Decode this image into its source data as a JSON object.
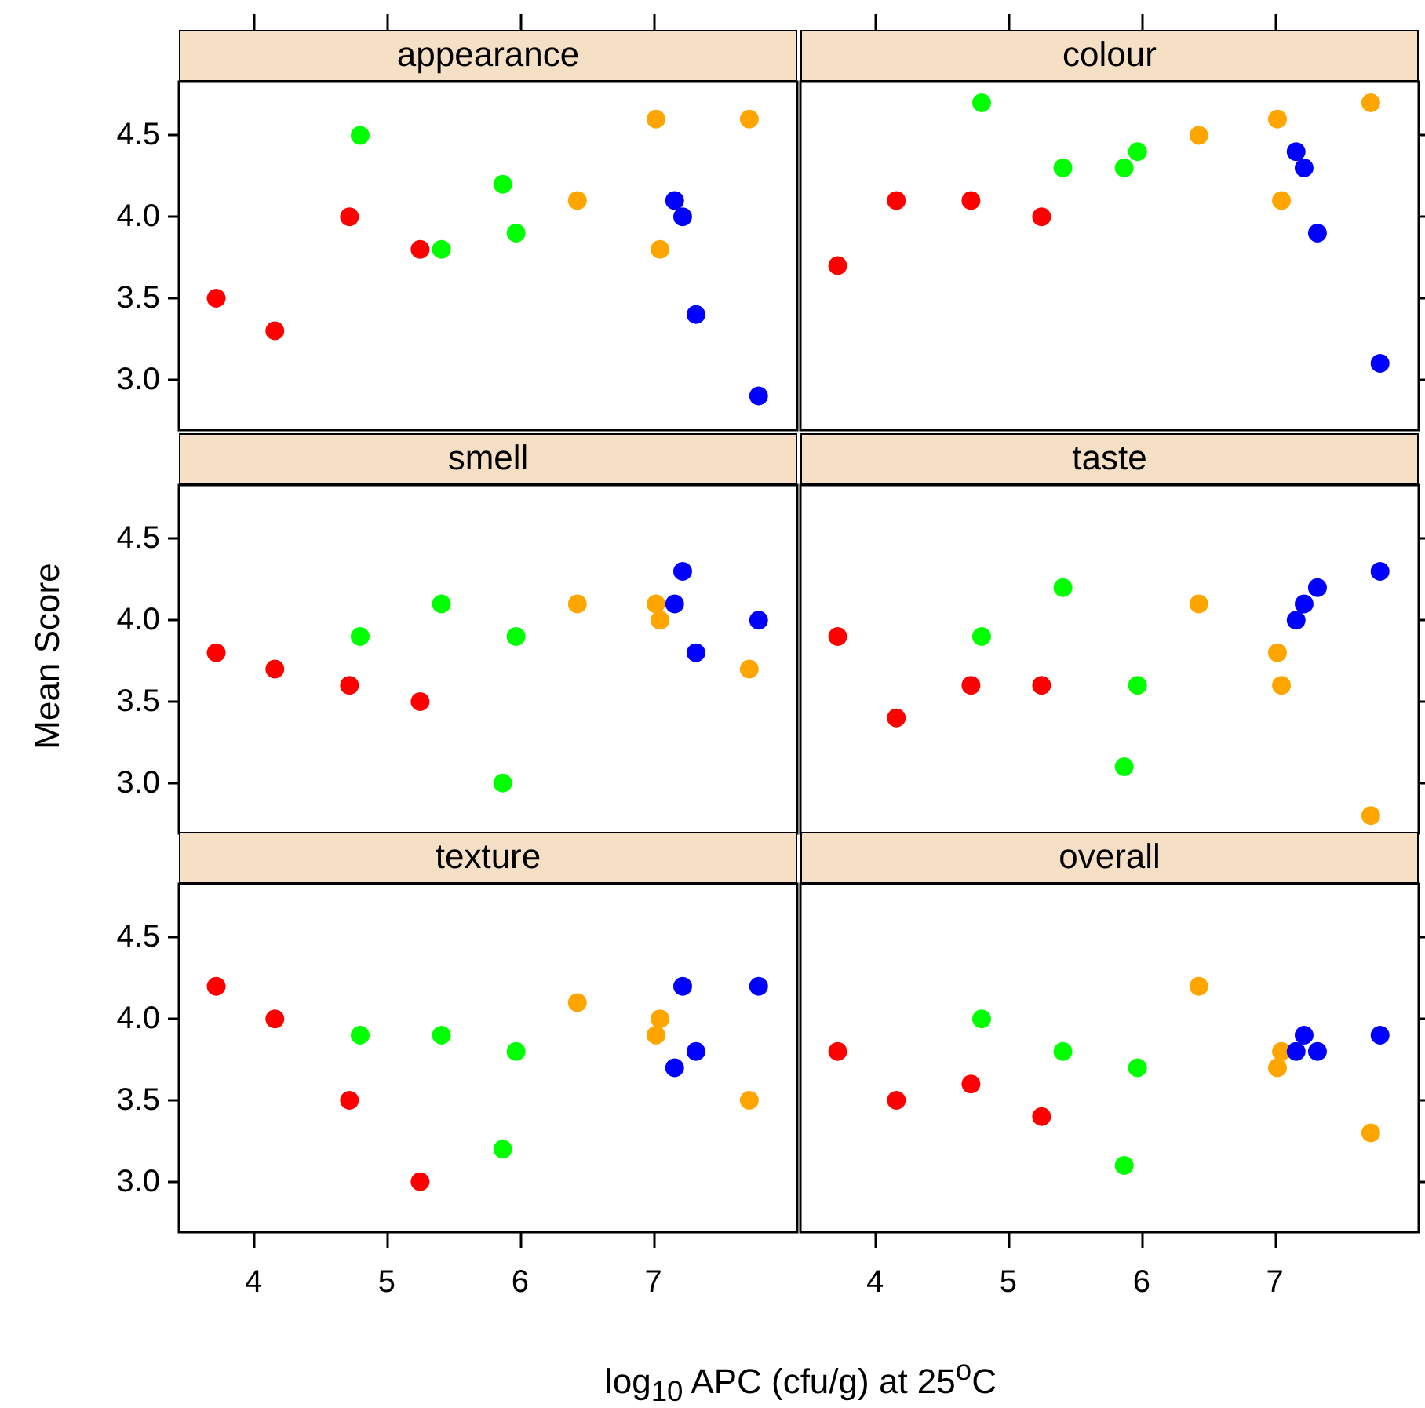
{
  "chart_data": [
    {
      "type": "scatter",
      "title": "appearance",
      "xlim": [
        3.44,
        8.08
      ],
      "ylim": [
        2.69,
        4.83
      ],
      "xticks": [
        4,
        5,
        6,
        7
      ],
      "yticks": [
        {
          "value": 3,
          "label": "3.0"
        },
        {
          "value": 3.5,
          "label": "3.5"
        },
        {
          "value": 4,
          "label": "4.0"
        },
        {
          "value": 4.5,
          "label": "4.5"
        }
      ],
      "tick_labels": "y",
      "marker": "circle",
      "series": [
        {
          "color": "#ff0000",
          "x": [
            3.72,
            4.16,
            4.72,
            5.25
          ],
          "values": [
            3.5,
            3.3,
            4.0,
            3.8
          ]
        },
        {
          "color": "#00ff00",
          "x": [
            4.8,
            5.41,
            5.87,
            5.97
          ],
          "values": [
            4.5,
            3.8,
            4.2,
            3.9
          ]
        },
        {
          "color": "#ffa500",
          "x": [
            6.43,
            7.02,
            7.05,
            7.72
          ],
          "values": [
            4.1,
            4.6,
            3.8,
            4.6
          ]
        },
        {
          "color": "#0000ff",
          "x": [
            7.16,
            7.22,
            7.32,
            7.79
          ],
          "values": [
            4.1,
            4.0,
            3.4,
            2.9
          ]
        }
      ]
    },
    {
      "type": "scatter",
      "title": "colour",
      "xlim": [
        3.44,
        8.08
      ],
      "ylim": [
        2.69,
        4.83
      ],
      "xticks": [
        4,
        5,
        6,
        7
      ],
      "yticks": [
        3,
        3.5,
        4,
        4.5
      ],
      "tick_labels": false,
      "marker": "circle",
      "series": [
        {
          "color": "#ff0000",
          "x": [
            3.72,
            4.16,
            4.72,
            5.25
          ],
          "values": [
            3.7,
            4.1,
            4.1,
            4.0
          ]
        },
        {
          "color": "#00ff00",
          "x": [
            4.8,
            5.41,
            5.87,
            5.97
          ],
          "values": [
            4.7,
            4.3,
            4.3,
            4.4
          ]
        },
        {
          "color": "#ffa500",
          "x": [
            6.43,
            7.02,
            7.05,
            7.72
          ],
          "values": [
            4.5,
            4.6,
            4.1,
            4.7
          ]
        },
        {
          "color": "#0000ff",
          "x": [
            7.16,
            7.22,
            7.32,
            7.79
          ],
          "values": [
            4.4,
            4.3,
            3.9,
            3.1
          ]
        }
      ]
    },
    {
      "type": "scatter",
      "title": "smell",
      "ylabel": "Mean Score",
      "xlim": [
        3.44,
        8.08
      ],
      "ylim": [
        2.69,
        4.83
      ],
      "xticks": [
        4,
        5,
        6,
        7
      ],
      "yticks": [
        {
          "value": 3,
          "label": "3.0"
        },
        {
          "value": 3.5,
          "label": "3.5"
        },
        {
          "value": 4,
          "label": "4.0"
        },
        {
          "value": 4.5,
          "label": "4.5"
        }
      ],
      "tick_labels": "y",
      "marker": "circle",
      "series": [
        {
          "color": "#ff0000",
          "x": [
            3.72,
            4.16,
            4.72,
            5.25
          ],
          "values": [
            3.8,
            3.7,
            3.6,
            3.5
          ]
        },
        {
          "color": "#00ff00",
          "x": [
            4.8,
            5.41,
            5.87,
            5.97
          ],
          "values": [
            3.9,
            4.1,
            3.0,
            3.9
          ]
        },
        {
          "color": "#ffa500",
          "x": [
            6.43,
            7.02,
            7.05,
            7.72
          ],
          "values": [
            4.1,
            4.1,
            4.0,
            3.7
          ]
        },
        {
          "color": "#0000ff",
          "x": [
            7.16,
            7.22,
            7.32,
            7.79
          ],
          "values": [
            4.1,
            4.3,
            3.8,
            4.0
          ]
        }
      ]
    },
    {
      "type": "scatter",
      "title": "taste",
      "xlim": [
        3.44,
        8.08
      ],
      "ylim": [
        2.69,
        4.83
      ],
      "xticks": [
        4,
        5,
        6,
        7
      ],
      "yticks": [
        3,
        3.5,
        4,
        4.5
      ],
      "tick_labels": false,
      "marker": "circle",
      "series": [
        {
          "color": "#ff0000",
          "x": [
            3.72,
            4.16,
            4.72,
            5.25
          ],
          "values": [
            3.9,
            3.4,
            3.6,
            3.6
          ]
        },
        {
          "color": "#00ff00",
          "x": [
            4.8,
            5.41,
            5.87,
            5.97
          ],
          "values": [
            3.9,
            4.2,
            3.1,
            3.6
          ]
        },
        {
          "color": "#ffa500",
          "x": [
            6.43,
            7.02,
            7.05,
            7.72
          ],
          "values": [
            4.1,
            3.8,
            3.6,
            2.8
          ]
        },
        {
          "color": "#0000ff",
          "x": [
            7.16,
            7.22,
            7.32,
            7.79
          ],
          "values": [
            4.0,
            4.1,
            4.2,
            4.3
          ]
        }
      ]
    },
    {
      "type": "scatter",
      "title": "texture",
      "xlabel": "log$_{10}$ APC (cfu/g) at 25$^{o}$C",
      "xlim": [
        3.44,
        8.08
      ],
      "ylim": [
        2.69,
        4.83
      ],
      "xticks": [
        4,
        5,
        6,
        7
      ],
      "yticks": [
        {
          "value": 3,
          "label": "3.0"
        },
        {
          "value": 3.5,
          "label": "3.5"
        },
        {
          "value": 4,
          "label": "4.0"
        },
        {
          "value": 4.5,
          "label": "4.5"
        }
      ],
      "marker": "circle",
      "series": [
        {
          "color": "#ff0000",
          "x": [
            3.72,
            4.16,
            4.72,
            5.25
          ],
          "values": [
            4.2,
            4.0,
            3.5,
            3.0
          ]
        },
        {
          "color": "#00ff00",
          "x": [
            4.8,
            5.41,
            5.87,
            5.97
          ],
          "values": [
            3.9,
            3.9,
            3.2,
            3.8
          ]
        },
        {
          "color": "#ffa500",
          "x": [
            6.43,
            7.02,
            7.05,
            7.72
          ],
          "values": [
            4.1,
            3.9,
            4.0,
            3.5
          ]
        },
        {
          "color": "#0000ff",
          "x": [
            7.16,
            7.22,
            7.32,
            7.79
          ],
          "values": [
            3.7,
            4.2,
            3.8,
            4.2
          ]
        }
      ]
    },
    {
      "type": "scatter",
      "title": "overall",
      "xlim": [
        3.44,
        8.08
      ],
      "ylim": [
        2.69,
        4.83
      ],
      "xticks": [
        4,
        5,
        6,
        7
      ],
      "yticks": [
        3,
        3.5,
        4,
        4.5
      ],
      "tick_labels": "x",
      "marker": "circle",
      "series": [
        {
          "color": "#ff0000",
          "x": [
            3.72,
            4.16,
            4.72,
            5.25
          ],
          "values": [
            3.8,
            3.5,
            3.6,
            3.4
          ]
        },
        {
          "color": "#00ff00",
          "x": [
            4.8,
            5.41,
            5.87,
            5.97
          ],
          "values": [
            4.0,
            3.8,
            3.1,
            3.7
          ]
        },
        {
          "color": "#ffa500",
          "x": [
            6.43,
            7.02,
            7.05,
            7.72
          ],
          "values": [
            4.2,
            3.7,
            3.8,
            3.3
          ]
        },
        {
          "color": "#0000ff",
          "x": [
            7.16,
            7.22,
            7.32,
            7.79
          ],
          "values": [
            3.8,
            3.9,
            3.8,
            3.9
          ]
        }
      ]
    }
  ]
}
